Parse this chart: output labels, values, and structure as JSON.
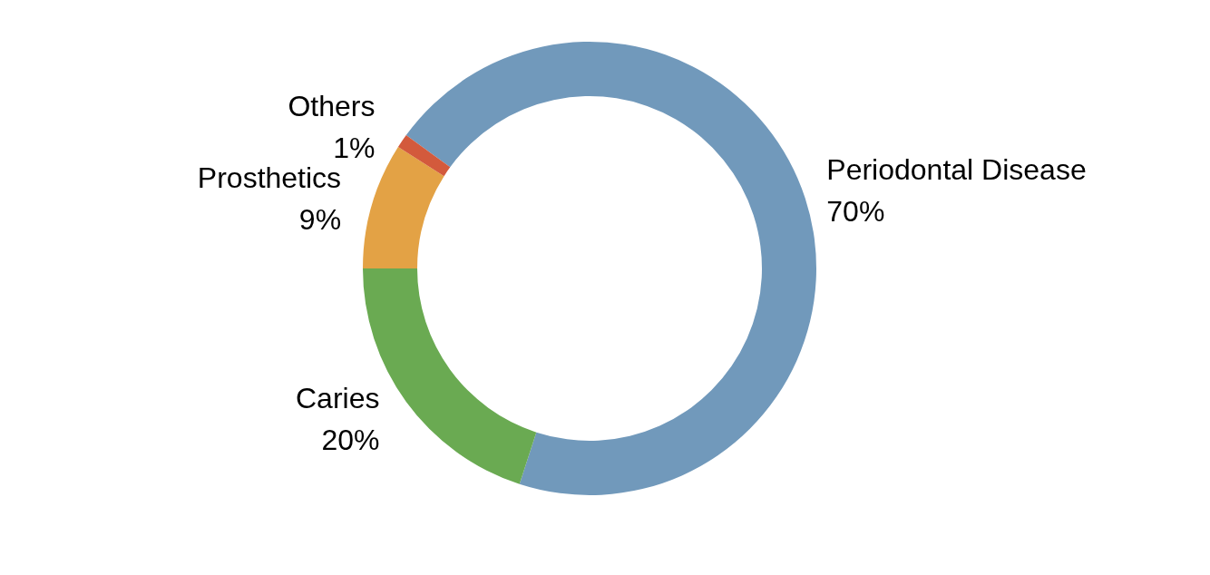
{
  "chart_data": {
    "type": "donut",
    "categories": [
      "Periodontal Disease",
      "Caries",
      "Prosthetics",
      "Others"
    ],
    "values": [
      70,
      20,
      9,
      1
    ],
    "value_labels": [
      "70%",
      "20%",
      "9%",
      "1%"
    ],
    "colors": [
      "#7199bb",
      "#6aaa52",
      "#e3a245",
      "#d35a3c"
    ],
    "legend": false
  }
}
